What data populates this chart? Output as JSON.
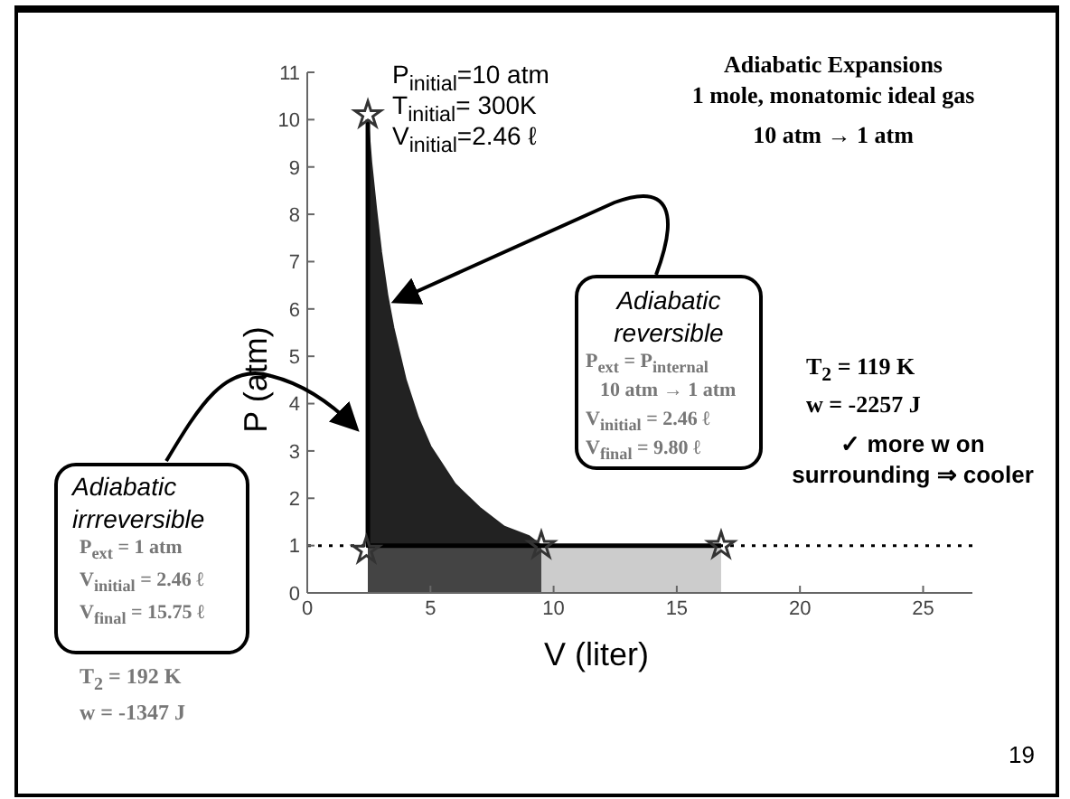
{
  "chart_data": {
    "type": "area",
    "title": "Adiabatic Expansions",
    "subtitle": "1 mole, monatomic ideal gas",
    "xlabel": "V (liter)",
    "ylabel": "P (atm)",
    "xlim": [
      0,
      27
    ],
    "ylim": [
      0,
      11
    ],
    "xticks": [
      0,
      5,
      10,
      15,
      20,
      25
    ],
    "yticks": [
      0,
      1,
      2,
      3,
      4,
      5,
      6,
      7,
      8,
      9,
      10,
      11
    ],
    "series": [
      {
        "color": "#222222",
        "x": [
          2.46,
          2.6,
          2.8,
          3,
          3.25,
          3.5,
          4,
          4.5,
          5,
          6,
          7,
          8,
          9,
          9.5
        ],
        "values": [
          10,
          9.1,
          8.1,
          7.2,
          6.3,
          5.6,
          4.5,
          3.7,
          3.1,
          2.3,
          1.8,
          1.4,
          1.2,
          1
        ]
      },
      {
        "color": "#444444",
        "x": [
          2.46,
          9.5
        ],
        "values": [
          1,
          1
        ]
      },
      {
        "color": "#cccccc",
        "x": [
          9.5,
          16.8
        ],
        "values": [
          1,
          1
        ]
      },
      {
        "type": "line",
        "color": "#000000",
        "line_style": "solid",
        "x": [
          2.46,
          2.46,
          16.8
        ],
        "values": [
          10,
          1,
          1
        ]
      },
      {
        "type": "scatter",
        "color": "#333333",
        "marker": "star",
        "x": [
          2.46,
          2.4,
          9.5,
          16.8
        ],
        "values": [
          10.1,
          0.9,
          1,
          1
        ]
      }
    ],
    "ref_lines": [
      {
        "axis": "y",
        "value": 1,
        "color": "#000000",
        "line_style": "dotted"
      }
    ],
    "annotations": [
      "P$_{initial}$=10 atm",
      "T$_{initial}$= 300K",
      "V$_{initial}$=2.46 ℓ",
      "10 atm → 1 atm",
      "Adiabatic",
      "reversible",
      "P$_{ext}$ = P$_{internal}$",
      "10 atm → 1 atm",
      "V$_{initial}$ = 2.46 ℓ",
      "V$_{final}$ = 9.80 ℓ",
      "T$_{2}$ = 119 K",
      "w = -2257 J",
      "✓ more w on",
      "surrounding ⇒ cooler",
      "Adiabatic",
      "irrreversible",
      "P$_{ext}$ = 1 atm",
      "V$_{initial}$ = 2.46 ℓ",
      "V$_{final}$ = 15.75 ℓ",
      "T$_{2}$ = 192 K",
      "w = -1347 J",
      "19"
    ]
  }
}
